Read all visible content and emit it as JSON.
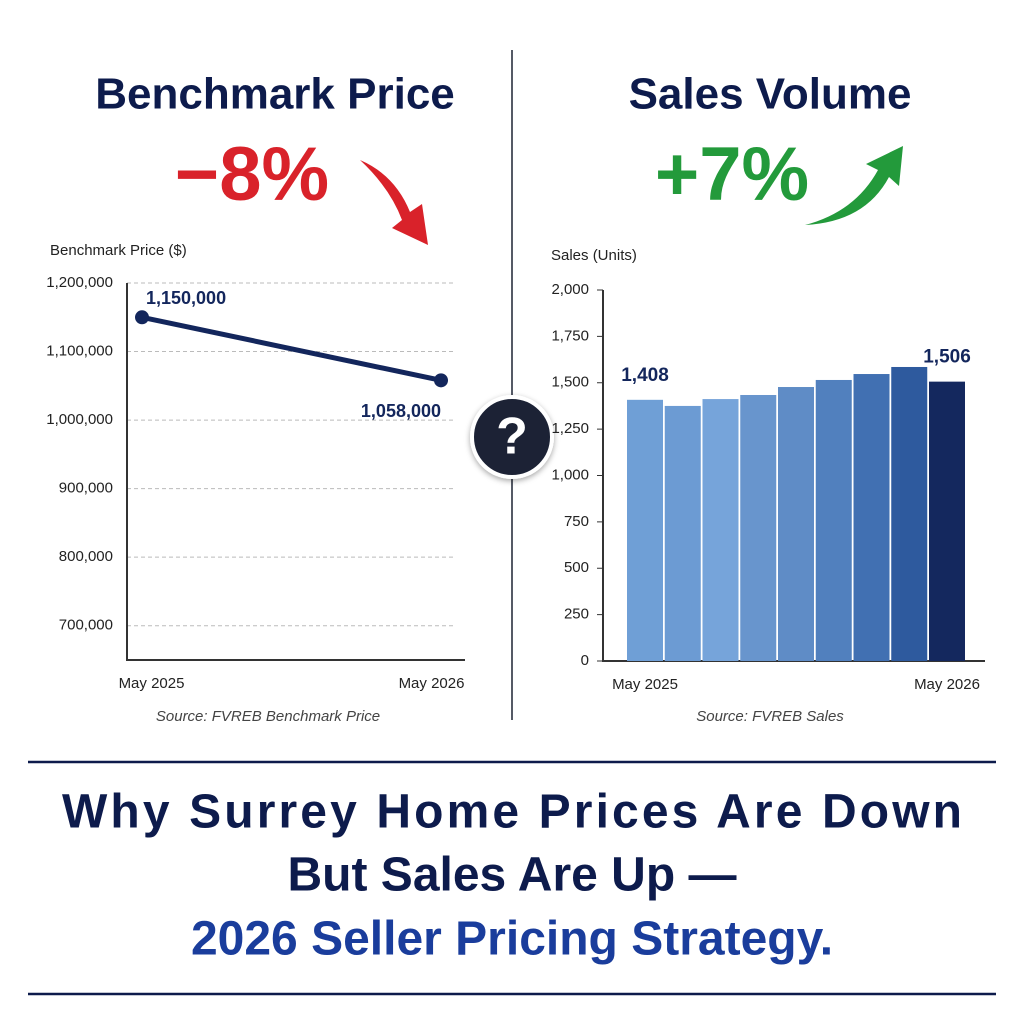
{
  "chart_data": [
    {
      "type": "line",
      "title": "Benchmark Price",
      "change": "−8%",
      "change_color": "#d9222a",
      "y_label": "Benchmark Price ($)",
      "categories": [
        "May 2025",
        "May 2026"
      ],
      "values": [
        1150000,
        1058000
      ],
      "value_labels": [
        "1,150,000",
        "1,058,000"
      ],
      "color": "#13265c",
      "ylim": [
        650000,
        1200000
      ],
      "yticks": [
        {
          "value": 700000,
          "label": "700,000"
        },
        {
          "value": 800000,
          "label": "800,000"
        },
        {
          "value": 900000,
          "label": "900,000"
        },
        {
          "value": 1000000,
          "label": "1,000,000"
        },
        {
          "value": 1100000,
          "label": "1,100,000"
        },
        {
          "value": 1200000,
          "label": "1,200,000"
        }
      ],
      "grid": true,
      "source": "Source: FVREB Benchmark Price"
    },
    {
      "type": "bar",
      "title": "Sales Volume",
      "change": "+7%",
      "change_color": "#239a3b",
      "y_label": "Sales (Units)",
      "categories": [
        "May 2025",
        null,
        null,
        null,
        null,
        null,
        null,
        null,
        "May 2026"
      ],
      "values": [
        1408,
        1375,
        1412,
        1434,
        1477,
        1515,
        1547,
        1585,
        1506
      ],
      "value_labels": [
        "1,408",
        null,
        null,
        null,
        null,
        null,
        null,
        null,
        "1,506"
      ],
      "colors": [
        "#6f9fd6",
        "#6c9bd3",
        "#76a4da",
        "#6895cd",
        "#5f8cc6",
        "#5180be",
        "#4170b2",
        "#2e5a9e",
        "#14285e"
      ],
      "ylim": [
        0,
        2000
      ],
      "yticks": [
        0,
        250,
        500,
        750,
        {
          "value": 1000,
          "label": "1,000"
        },
        {
          "value": 1250,
          "label": "1,250"
        },
        {
          "value": 1500,
          "label": "1,500"
        },
        {
          "value": 1750,
          "label": "1,750"
        },
        {
          "value": 2000,
          "label": "2,000"
        }
      ],
      "grid": false,
      "source": "Source: FVREB Sales"
    }
  ],
  "center_icon": "?",
  "headline": [
    "Why Surrey Home Prices Are Down",
    "But Sales Are Up —",
    "2026 Seller Pricing Strategy."
  ]
}
